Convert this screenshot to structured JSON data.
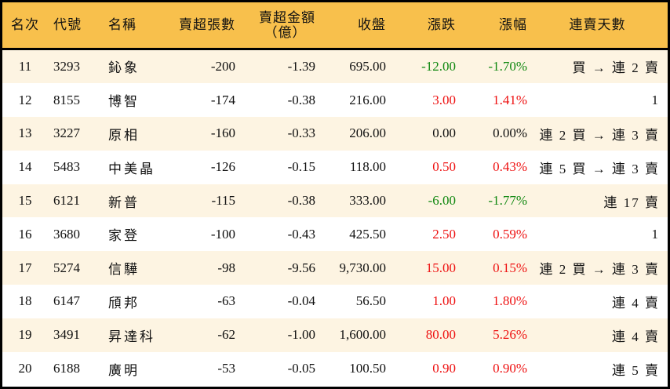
{
  "headers": [
    "名次",
    "代號",
    "名稱",
    "賣超張數",
    "賣超金額",
    "（億）",
    "收盤",
    "漲跌",
    "漲幅",
    "連賣天數"
  ],
  "colors": {
    "header_bg": "#f8c04c",
    "row_alt": "#fdf4e2",
    "up": "#ee1111",
    "down": "#118811"
  },
  "rows": [
    {
      "rank": "11",
      "code": "3293",
      "name": "鈊象",
      "shares": "-200",
      "amount": "-1.39",
      "close": "695.00",
      "change": "-12.00",
      "pct": "-1.70%",
      "streak": "買 → 連 2 賣",
      "dir": "down"
    },
    {
      "rank": "12",
      "code": "8155",
      "name": "博智",
      "shares": "-174",
      "amount": "-0.38",
      "close": "216.00",
      "change": "3.00",
      "pct": "1.41%",
      "streak": "1",
      "dir": "up"
    },
    {
      "rank": "13",
      "code": "3227",
      "name": "原相",
      "shares": "-160",
      "amount": "-0.33",
      "close": "206.00",
      "change": "0.00",
      "pct": "0.00%",
      "streak": "連 2 買 → 連 3 賣",
      "dir": "flat"
    },
    {
      "rank": "14",
      "code": "5483",
      "name": "中美晶",
      "shares": "-126",
      "amount": "-0.15",
      "close": "118.00",
      "change": "0.50",
      "pct": "0.43%",
      "streak": "連 5 買 → 連 3 賣",
      "dir": "up"
    },
    {
      "rank": "15",
      "code": "6121",
      "name": "新普",
      "shares": "-115",
      "amount": "-0.38",
      "close": "333.00",
      "change": "-6.00",
      "pct": "-1.77%",
      "streak": "連 17 賣",
      "dir": "down"
    },
    {
      "rank": "16",
      "code": "3680",
      "name": "家登",
      "shares": "-100",
      "amount": "-0.43",
      "close": "425.50",
      "change": "2.50",
      "pct": "0.59%",
      "streak": "1",
      "dir": "up"
    },
    {
      "rank": "17",
      "code": "5274",
      "name": "信驊",
      "shares": "-98",
      "amount": "-9.56",
      "close": "9,730.00",
      "change": "15.00",
      "pct": "0.15%",
      "streak": "連 2 買 → 連 3 賣",
      "dir": "up"
    },
    {
      "rank": "18",
      "code": "6147",
      "name": "頎邦",
      "shares": "-63",
      "amount": "-0.04",
      "close": "56.50",
      "change": "1.00",
      "pct": "1.80%",
      "streak": "連 4 賣",
      "dir": "up"
    },
    {
      "rank": "19",
      "code": "3491",
      "name": "昇達科",
      "shares": "-62",
      "amount": "-1.00",
      "close": "1,600.00",
      "change": "80.00",
      "pct": "5.26%",
      "streak": "連 4 賣",
      "dir": "up"
    },
    {
      "rank": "20",
      "code": "6188",
      "name": "廣明",
      "shares": "-53",
      "amount": "-0.05",
      "close": "100.50",
      "change": "0.90",
      "pct": "0.90%",
      "streak": "連 5 賣",
      "dir": "up"
    }
  ]
}
